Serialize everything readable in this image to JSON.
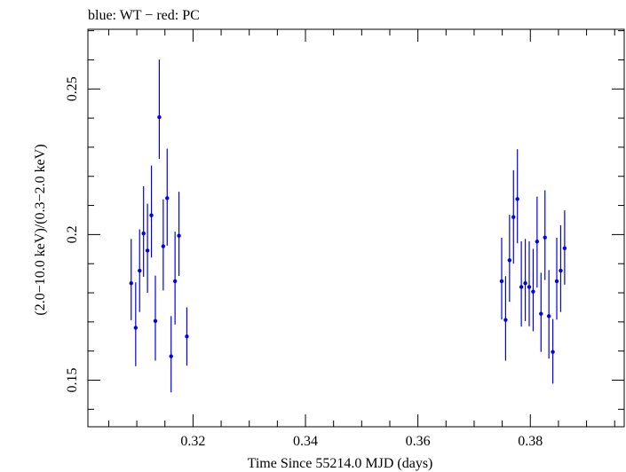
{
  "chart_data": {
    "type": "scatter",
    "title": "blue: WT − red: PC",
    "xlabel": "Time Since 55214.0 MJD (days)",
    "ylabel": "(2.0−10.0 keV)/(0.3−2.0 keV)",
    "xlim": [
      0.3013,
      0.3967
    ],
    "ylim": [
      0.134,
      0.2705
    ],
    "x_ticks": [
      0.32,
      0.34,
      0.36,
      0.38
    ],
    "x_tick_labels": [
      "0.32",
      "0.34",
      "0.36",
      "0.38"
    ],
    "y_ticks": [
      0.15,
      0.2,
      0.25
    ],
    "y_tick_labels": [
      "0.15",
      "0.2",
      "0.25"
    ],
    "grid": false,
    "series": [
      {
        "color": "#0000ee",
        "points": [
          {
            "x": 0.309,
            "y": 0.1833,
            "ylo": 0.1706,
            "yhi": 0.1985
          },
          {
            "x": 0.3098,
            "y": 0.168,
            "ylo": 0.1548,
            "yhi": 0.1836
          },
          {
            "x": 0.3105,
            "y": 0.1876,
            "ylo": 0.1734,
            "yhi": 0.2018
          },
          {
            "x": 0.3112,
            "y": 0.2004,
            "ylo": 0.1855,
            "yhi": 0.2166
          },
          {
            "x": 0.3119,
            "y": 0.1945,
            "ylo": 0.18,
            "yhi": 0.2106
          },
          {
            "x": 0.3126,
            "y": 0.2066,
            "ylo": 0.1921,
            "yhi": 0.2237
          },
          {
            "x": 0.3133,
            "y": 0.1703,
            "ylo": 0.1567,
            "yhi": 0.1859
          },
          {
            "x": 0.314,
            "y": 0.2403,
            "ylo": 0.226,
            "yhi": 0.2601
          },
          {
            "x": 0.3147,
            "y": 0.196,
            "ylo": 0.1808,
            "yhi": 0.2121
          },
          {
            "x": 0.3154,
            "y": 0.2125,
            "ylo": 0.1962,
            "yhi": 0.2295
          },
          {
            "x": 0.3161,
            "y": 0.1582,
            "ylo": 0.1458,
            "yhi": 0.172
          },
          {
            "x": 0.3168,
            "y": 0.184,
            "ylo": 0.1691,
            "yhi": 0.201
          },
          {
            "x": 0.3175,
            "y": 0.1996,
            "ylo": 0.1858,
            "yhi": 0.2147
          },
          {
            "x": 0.3189,
            "y": 0.165,
            "ylo": 0.155,
            "yhi": 0.175
          },
          {
            "x": 0.3749,
            "y": 0.184,
            "ylo": 0.1708,
            "yhi": 0.1989
          },
          {
            "x": 0.3756,
            "y": 0.1707,
            "ylo": 0.1567,
            "yhi": 0.1857
          },
          {
            "x": 0.3763,
            "y": 0.1912,
            "ylo": 0.1769,
            "yhi": 0.2068
          },
          {
            "x": 0.377,
            "y": 0.206,
            "ylo": 0.19,
            "yhi": 0.2221
          },
          {
            "x": 0.3777,
            "y": 0.2122,
            "ylo": 0.197,
            "yhi": 0.2293
          },
          {
            "x": 0.3784,
            "y": 0.182,
            "ylo": 0.1684,
            "yhi": 0.1977
          },
          {
            "x": 0.3791,
            "y": 0.1833,
            "ylo": 0.1703,
            "yhi": 0.1985
          },
          {
            "x": 0.3798,
            "y": 0.182,
            "ylo": 0.1685,
            "yhi": 0.1977
          },
          {
            "x": 0.3805,
            "y": 0.1804,
            "ylo": 0.1668,
            "yhi": 0.1951
          },
          {
            "x": 0.3812,
            "y": 0.1976,
            "ylo": 0.1818,
            "yhi": 0.213
          },
          {
            "x": 0.3819,
            "y": 0.1728,
            "ylo": 0.1597,
            "yhi": 0.1869
          },
          {
            "x": 0.3826,
            "y": 0.199,
            "ylo": 0.1844,
            "yhi": 0.2152
          },
          {
            "x": 0.3833,
            "y": 0.172,
            "ylo": 0.1574,
            "yhi": 0.1878
          },
          {
            "x": 0.384,
            "y": 0.1597,
            "ylo": 0.1488,
            "yhi": 0.171
          },
          {
            "x": 0.3847,
            "y": 0.184,
            "ylo": 0.1708,
            "yhi": 0.1989
          },
          {
            "x": 0.3854,
            "y": 0.1876,
            "ylo": 0.1734,
            "yhi": 0.2032
          },
          {
            "x": 0.3861,
            "y": 0.1953,
            "ylo": 0.1828,
            "yhi": 0.2083
          }
        ]
      }
    ]
  }
}
